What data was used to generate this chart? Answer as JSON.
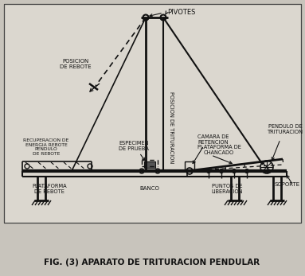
{
  "title": "FIG. (3) APARATO DE TRITURACION PENDULAR",
  "bg_color": "#c8c4bc",
  "diagram_bg": "#d0ccC4",
  "line_color": "#111111",
  "figsize": [
    3.83,
    3.47
  ],
  "dpi": 100,
  "labels": {
    "pivotes": "PIVOTES",
    "posicion_rebote": "POSICION\nDE REBOTE",
    "posicion_trituracion": "POSICION DE TRITURACION",
    "recuperacion": "RECUPERACION DE\nENERGIA REBOTE\nPENDULO\nDE REBOTE",
    "especimen": "ESPECIMEN\nDE PRUEBA",
    "camara": "CAMARA DE\nRETENCION",
    "plataforma_chancado": "PLATAFORMA DE\nCHANCADO",
    "pendulo_trituracion": "PENDULO DE\nTRITURACION",
    "plataforma_rebote": "PLATAFORMA\nDE REBOTE",
    "banco": "BANCO",
    "puntos_liberacion": "PUNTOS DE\nLIBERACION",
    "soporte": "SOPORTE"
  }
}
